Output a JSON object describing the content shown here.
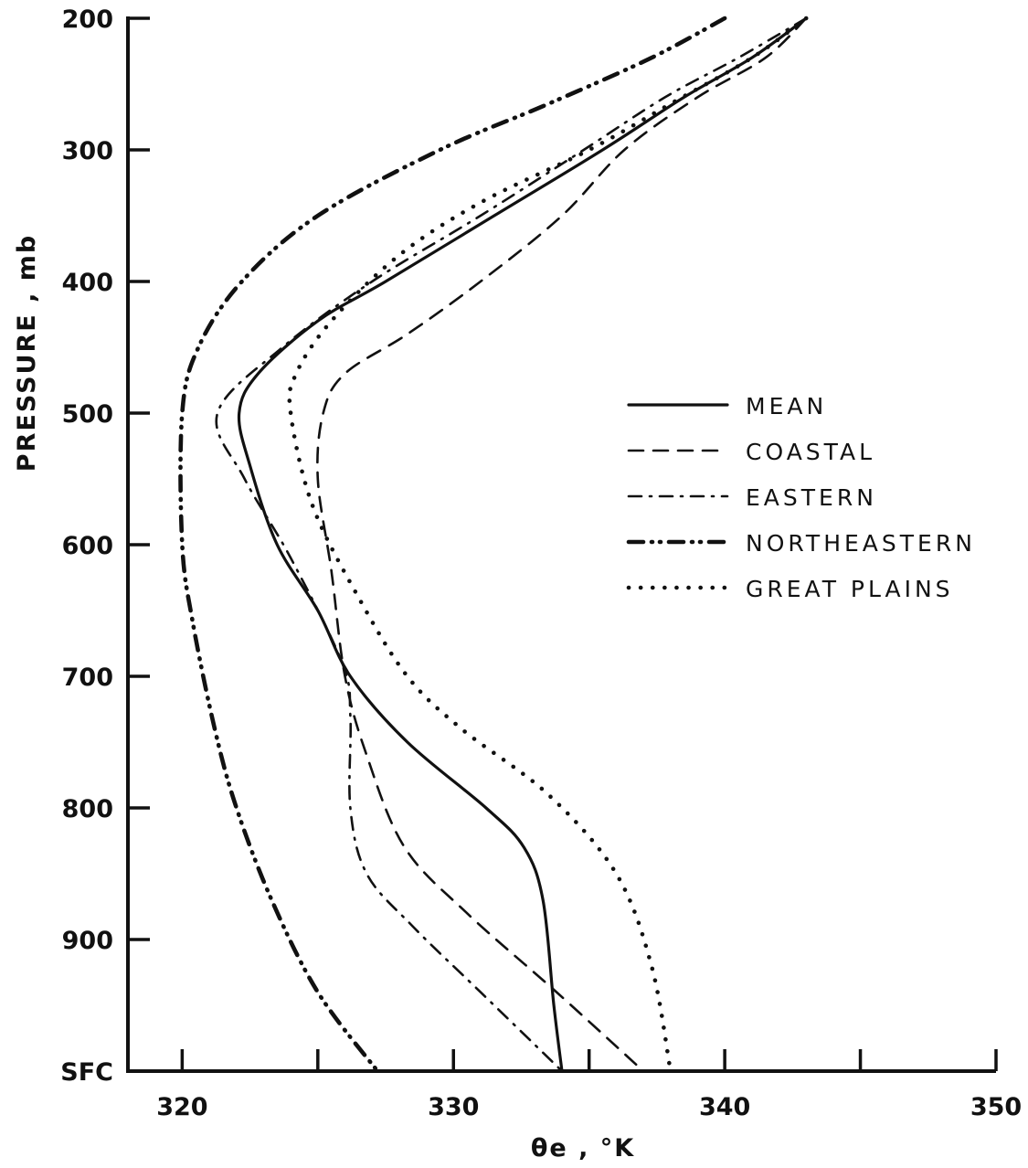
{
  "chart_data": {
    "type": "line",
    "title": "",
    "xlabel": "θe , °K",
    "ylabel": "PRESSURE , mb",
    "xlim": [
      318,
      350
    ],
    "ylim": [
      1000,
      200
    ],
    "y_axis_inverted": true,
    "grid": false,
    "legend_position": "right-middle",
    "x_ticks": [
      {
        "value": 320,
        "label": "320"
      },
      {
        "value": 325,
        "label": ""
      },
      {
        "value": 330,
        "label": "330"
      },
      {
        "value": 335,
        "label": ""
      },
      {
        "value": 340,
        "label": "340"
      },
      {
        "value": 345,
        "label": ""
      },
      {
        "value": 350,
        "label": "350"
      }
    ],
    "y_ticks": [
      {
        "value": 200,
        "label": "200"
      },
      {
        "value": 300,
        "label": "300"
      },
      {
        "value": 400,
        "label": "400"
      },
      {
        "value": 500,
        "label": "500"
      },
      {
        "value": 600,
        "label": "600"
      },
      {
        "value": 700,
        "label": "700"
      },
      {
        "value": 800,
        "label": "800"
      },
      {
        "value": 900,
        "label": "900"
      },
      {
        "value": 1000,
        "label": "SFC"
      }
    ],
    "series": [
      {
        "name": "MEAN",
        "line_style": "solid",
        "points": [
          {
            "x": 343.0,
            "p": 200
          },
          {
            "x": 341.0,
            "p": 230
          },
          {
            "x": 338.5,
            "p": 260
          },
          {
            "x": 335.5,
            "p": 300
          },
          {
            "x": 331.5,
            "p": 350
          },
          {
            "x": 327.5,
            "p": 400
          },
          {
            "x": 325.0,
            "p": 430
          },
          {
            "x": 322.8,
            "p": 470
          },
          {
            "x": 322.1,
            "p": 500
          },
          {
            "x": 322.5,
            "p": 540
          },
          {
            "x": 323.5,
            "p": 600
          },
          {
            "x": 325.0,
            "p": 650
          },
          {
            "x": 326.2,
            "p": 700
          },
          {
            "x": 328.3,
            "p": 750
          },
          {
            "x": 331.2,
            "p": 800
          },
          {
            "x": 332.6,
            "p": 830
          },
          {
            "x": 333.3,
            "p": 870
          },
          {
            "x": 333.7,
            "p": 950
          },
          {
            "x": 334.0,
            "p": 1000
          }
        ]
      },
      {
        "name": "COASTAL",
        "line_style": "dashed",
        "points": [
          {
            "x": 343.0,
            "p": 200
          },
          {
            "x": 341.5,
            "p": 230
          },
          {
            "x": 339.0,
            "p": 260
          },
          {
            "x": 336.3,
            "p": 300
          },
          {
            "x": 334.0,
            "p": 350
          },
          {
            "x": 331.0,
            "p": 400
          },
          {
            "x": 328.3,
            "p": 440
          },
          {
            "x": 326.0,
            "p": 470
          },
          {
            "x": 325.2,
            "p": 500
          },
          {
            "x": 325.0,
            "p": 550
          },
          {
            "x": 325.5,
            "p": 620
          },
          {
            "x": 326.0,
            "p": 700
          },
          {
            "x": 326.8,
            "p": 760
          },
          {
            "x": 328.2,
            "p": 830
          },
          {
            "x": 330.5,
            "p": 880
          },
          {
            "x": 333.8,
            "p": 940
          },
          {
            "x": 337.0,
            "p": 1000
          }
        ]
      },
      {
        "name": "EASTERN",
        "line_style": "dash-dot",
        "points": [
          {
            "x": 343.0,
            "p": 200
          },
          {
            "x": 340.5,
            "p": 230
          },
          {
            "x": 337.8,
            "p": 260
          },
          {
            "x": 334.8,
            "p": 300
          },
          {
            "x": 331.0,
            "p": 350
          },
          {
            "x": 327.0,
            "p": 400
          },
          {
            "x": 323.7,
            "p": 450
          },
          {
            "x": 321.3,
            "p": 500
          },
          {
            "x": 322.3,
            "p": 550
          },
          {
            "x": 324.0,
            "p": 610
          },
          {
            "x": 325.9,
            "p": 690
          },
          {
            "x": 326.2,
            "p": 730
          },
          {
            "x": 326.2,
            "p": 800
          },
          {
            "x": 326.8,
            "p": 850
          },
          {
            "x": 328.5,
            "p": 890
          },
          {
            "x": 331.0,
            "p": 940
          },
          {
            "x": 334.0,
            "p": 1000
          }
        ]
      },
      {
        "name": "NORTHEASTERN",
        "line_style": "dash-dot-dot",
        "points": [
          {
            "x": 340.0,
            "p": 200
          },
          {
            "x": 337.3,
            "p": 230
          },
          {
            "x": 333.5,
            "p": 265
          },
          {
            "x": 329.5,
            "p": 300
          },
          {
            "x": 325.0,
            "p": 350
          },
          {
            "x": 322.2,
            "p": 400
          },
          {
            "x": 320.6,
            "p": 450
          },
          {
            "x": 320.0,
            "p": 500
          },
          {
            "x": 320.0,
            "p": 600
          },
          {
            "x": 320.4,
            "p": 660
          },
          {
            "x": 321.2,
            "p": 740
          },
          {
            "x": 322.0,
            "p": 800
          },
          {
            "x": 323.3,
            "p": 870
          },
          {
            "x": 325.0,
            "p": 940
          },
          {
            "x": 327.2,
            "p": 1000
          }
        ]
      },
      {
        "name": "GREAT PLAINS",
        "line_style": "dotted",
        "points": [
          {
            "x": 343.0,
            "p": 200
          },
          {
            "x": 341.0,
            "p": 230
          },
          {
            "x": 338.0,
            "p": 265
          },
          {
            "x": 335.0,
            "p": 300
          },
          {
            "x": 331.0,
            "p": 340
          },
          {
            "x": 328.0,
            "p": 380
          },
          {
            "x": 325.5,
            "p": 430
          },
          {
            "x": 324.2,
            "p": 470
          },
          {
            "x": 324.0,
            "p": 500
          },
          {
            "x": 324.8,
            "p": 570
          },
          {
            "x": 326.5,
            "p": 640
          },
          {
            "x": 328.3,
            "p": 700
          },
          {
            "x": 330.3,
            "p": 740
          },
          {
            "x": 333.5,
            "p": 790
          },
          {
            "x": 336.0,
            "p": 850
          },
          {
            "x": 337.3,
            "p": 920
          },
          {
            "x": 338.0,
            "p": 1000
          }
        ]
      }
    ]
  }
}
